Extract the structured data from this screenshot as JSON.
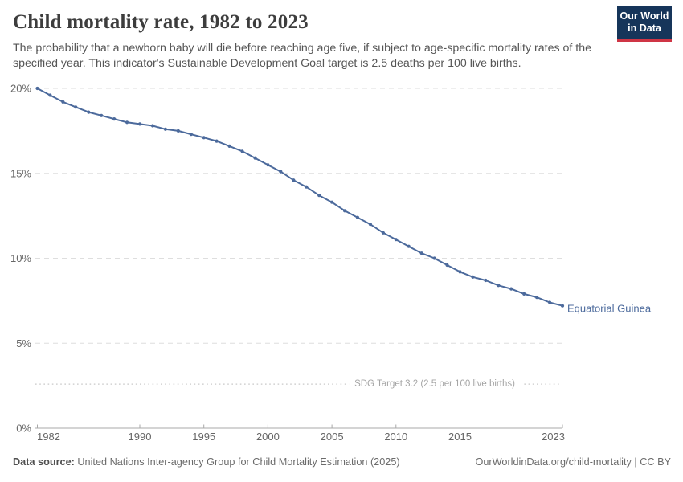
{
  "header": {
    "title": "Child mortality rate, 1982 to 2023",
    "subtitle": "The probability that a newborn baby will die before reaching age five, if subject to age-specific mortality rates of the specified year. This indicator's Sustainable Development Goal target is 2.5 deaths per 100 live births."
  },
  "logo": {
    "line1": "Our World",
    "line2": "in Data",
    "bg_color": "#16355a",
    "accent_color": "#cf3545"
  },
  "chart_data": {
    "type": "line",
    "title": "Child mortality rate, 1982 to 2023",
    "x": [
      1982,
      1983,
      1984,
      1985,
      1986,
      1987,
      1988,
      1989,
      1990,
      1991,
      1992,
      1993,
      1994,
      1995,
      1996,
      1997,
      1998,
      1999,
      2000,
      2001,
      2002,
      2003,
      2004,
      2005,
      2006,
      2007,
      2008,
      2009,
      2010,
      2011,
      2012,
      2013,
      2014,
      2015,
      2016,
      2017,
      2018,
      2019,
      2020,
      2021,
      2022,
      2023
    ],
    "series": [
      {
        "name": "Equatorial Guinea",
        "color": "#4c6a9c",
        "values": [
          20.0,
          19.6,
          19.2,
          18.9,
          18.6,
          18.4,
          18.2,
          18.0,
          17.9,
          17.8,
          17.6,
          17.5,
          17.3,
          17.1,
          16.9,
          16.6,
          16.3,
          15.9,
          15.5,
          15.1,
          14.6,
          14.2,
          13.7,
          13.3,
          12.8,
          12.4,
          12.0,
          11.5,
          11.1,
          10.7,
          10.3,
          10.0,
          9.6,
          9.2,
          8.9,
          8.7,
          8.4,
          8.2,
          7.9,
          7.7,
          7.4,
          7.2
        ]
      }
    ],
    "xlabel": "",
    "ylabel": "",
    "ylim": [
      0,
      20
    ],
    "xlim": [
      1982,
      2023
    ],
    "y_ticks": [
      0,
      5,
      10,
      15,
      20
    ],
    "y_tick_suffix": "%",
    "x_ticks": [
      1982,
      1990,
      1995,
      2000,
      2005,
      2010,
      2015,
      2023
    ],
    "grid": "horizontal-dashed",
    "legend_position": "end-of-line-label",
    "end_label": "Equatorial Guinea",
    "annotation": {
      "sdg_label": "SDG Target 3.2 (2.5 per 100 live births)",
      "sdg_value": 2.5
    },
    "colors": {
      "line": "#4c6a9c",
      "gridline": "#dedede",
      "axis": "#a8a8a8",
      "tick_text": "#666666",
      "sdg_line": "#c8c8c8"
    }
  },
  "footer": {
    "datasource_label": "Data source:",
    "datasource_text": " United Nations Inter-agency Group for Child Mortality Estimation (2025)",
    "link_text": "OurWorldinData.org/child-mortality | CC BY"
  }
}
